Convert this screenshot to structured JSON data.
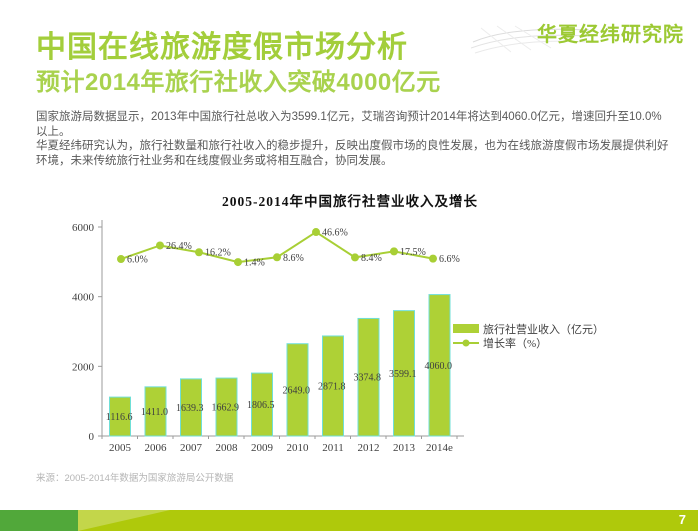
{
  "header": {
    "title": "中国在线旅游度假市场分析",
    "subtitle": "预计2014年旅行社收入突破4000亿元",
    "logo": "华夏经纬研究院"
  },
  "intro": {
    "paragraph1": "国家旅游局数据显示，2013年中国旅行社总收入为3599.1亿元，艾瑞咨询预计2014年将达到4060.0亿元，增速回升至10.0%以上。",
    "paragraph2": "华夏经纬研究认为，旅行社数量和旅行社收入的稳步提升，反映出度假市场的良性发展，也为在线旅游度假市场发展提供利好环境，未来传统旅行社业务和在线度假业务或将相互融合，协同发展。"
  },
  "chart_data": {
    "type": "bar+line",
    "title": "2005-2014年中国旅行社营业收入及增长",
    "categories": [
      "2005",
      "2006",
      "2007",
      "2008",
      "2009",
      "2010",
      "2011",
      "2012",
      "2013",
      "2014e"
    ],
    "bar_series": {
      "name": "旅行社营业收入（亿元）",
      "values": [
        1116.6,
        1411.0,
        1639.3,
        1662.9,
        1806.5,
        2649.0,
        2871.8,
        3374.8,
        3599.1,
        4060.0
      ],
      "labels": [
        "1116.6",
        "1411.0",
        "1639.3",
        "1662.9",
        "1806.5",
        "2649.0",
        "2871.8",
        "3374.8",
        "3599.1",
        "4060.0"
      ]
    },
    "line_series": {
      "name": "增长率（%）",
      "values": [
        6.0,
        26.4,
        16.2,
        1.4,
        8.6,
        46.6,
        8.4,
        17.5,
        6.6
      ],
      "labels": [
        "6.0%",
        "26.4%",
        "16.2%",
        "1.4%",
        "8.6%",
        "46.6%",
        "8.4%",
        "17.5%",
        "6.6%"
      ]
    },
    "y_axis": {
      "ticks": [
        "0",
        "2000",
        "4000",
        "6000"
      ],
      "ylim": [
        0,
        6000
      ]
    },
    "grid": false,
    "legend_position": "right",
    "colors": {
      "bar_fill": "#aed136",
      "bar_border": "#6fdfd7",
      "line": "#a8cf35",
      "axis": "#9b9b9b",
      "label_text": "#3f3f3f"
    }
  },
  "source": "来源：2005-2014年数据为国家旅游局公开数据",
  "footer": {
    "page_number": "7"
  },
  "theme": {
    "title_green": "#a3ce3b",
    "subtitle_green": "#a9d24e",
    "logo_green": "#9cc933",
    "body_text": "#595959",
    "footer_bar": "#afc90b",
    "footer_square": "#51a83a",
    "footer_triangle": "#c3d64a"
  }
}
